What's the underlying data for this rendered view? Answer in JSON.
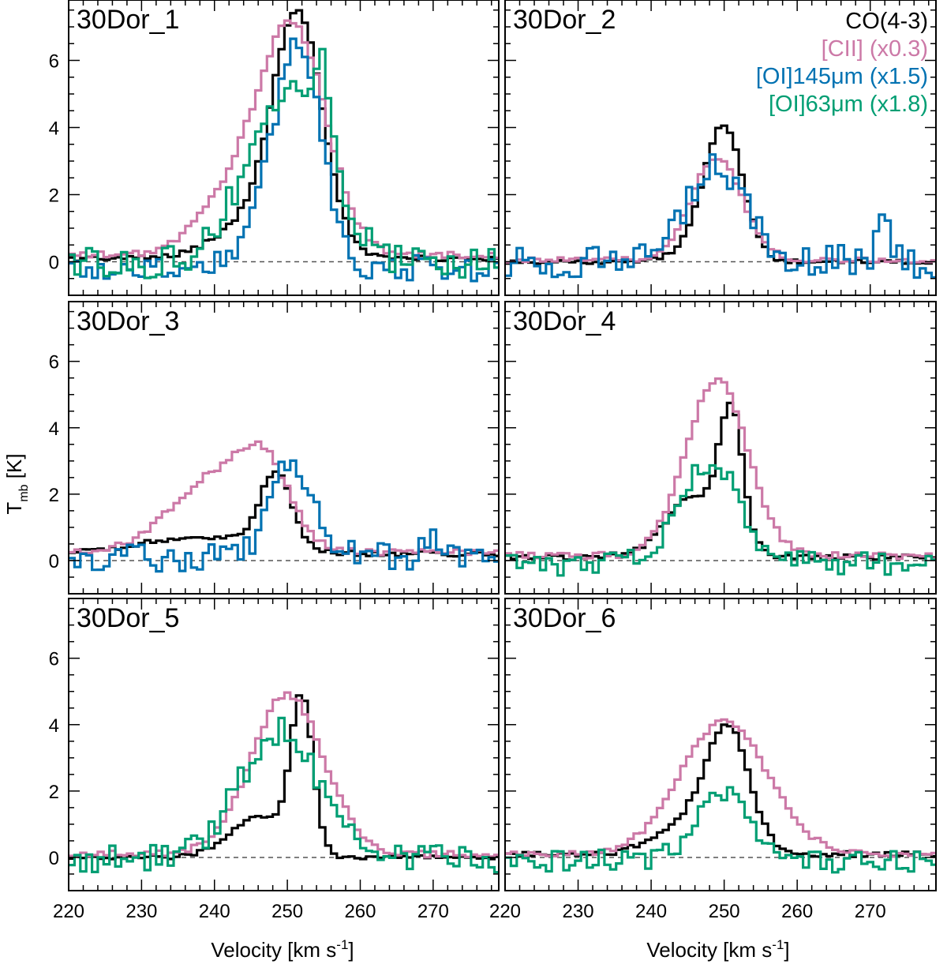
{
  "chart_data": {
    "type": "line",
    "layout": "3 rows x 2 columns, shared axes",
    "xlabel": "Velocity [km s",
    "xlabel_sup": "-1",
    "xlabel_close": "]",
    "ylabel": "T",
    "ylabel_sub": "mb",
    "ylabel_unit": " [K]",
    "xlim": [
      220,
      279
    ],
    "ylim": [
      -1,
      7.8
    ],
    "x_tick_labels": [
      "220",
      "230",
      "240",
      "250",
      "260",
      "270"
    ],
    "y_tick_labels": [
      "0",
      "2",
      "4",
      "6"
    ],
    "series_styles": [
      {
        "key": "co",
        "name": "CO(4-3)",
        "color": "#000000"
      },
      {
        "key": "cii",
        "name": "[CII] (x0.3)",
        "color": "#cc79a7"
      },
      {
        "key": "oi145",
        "name": "[OI]145μm (x1.5)",
        "color": "#0072b2"
      },
      {
        "key": "oi63",
        "name": "[OI]63μm (x1.8)",
        "color": "#009e73"
      }
    ],
    "legend": {
      "panel": "30Dor_2",
      "placement": "top-right",
      "entries": [
        "CO(4-3)",
        "[CII] (x0.3)",
        "[OI]145μm (x1.5)",
        "[OI]63μm (x1.8)"
      ]
    },
    "panels": [
      {
        "title": "30Dor_1",
        "series": {
          "co": {
            "center": 251.5,
            "sigma": 3.4,
            "amp": 7.0,
            "baseline": 0.1,
            "noise": 0.08,
            "wing_amp": 1.0,
            "wing_center": 245,
            "wing_sigma": 5
          },
          "cii": {
            "center": 251,
            "sigma": 4.5,
            "amp": 6.4,
            "baseline": 0.2,
            "noise": 0.1,
            "wing_amp": 1.8,
            "wing_center": 243,
            "wing_sigma": 5
          },
          "oi145": {
            "center": 251.5,
            "sigma": 3.2,
            "amp": 6.6,
            "baseline": -0.2,
            "noise": 0.4,
            "wing_amp": 0.6,
            "wing_center": 246,
            "wing_sigma": 4
          },
          "oi63": {
            "center": 250,
            "sigma": 5.5,
            "amp": 5.0,
            "baseline": 0.0,
            "noise": 0.5,
            "wing_amp": 2.5,
            "wing_center": 255,
            "wing_sigma": 1.5
          }
        }
      },
      {
        "title": "30Dor_2",
        "series": {
          "co": {
            "center": 250,
            "sigma": 2.6,
            "amp": 3.9,
            "baseline": 0.0,
            "noise": 0.06,
            "wing_amp": 0.4,
            "wing_center": 246,
            "wing_sigma": 3
          },
          "cii": {
            "center": 249,
            "sigma": 3.6,
            "amp": 3.0,
            "baseline": 0.05,
            "noise": 0.08,
            "wing_amp": 0,
            "wing_center": 249,
            "wing_sigma": 3
          },
          "oi145": {
            "center": 249,
            "sigma": 3.8,
            "amp": 2.9,
            "baseline": 0.0,
            "noise": 0.5,
            "wing_amp": 1.3,
            "wing_center": 272,
            "wing_sigma": 0.9
          }
        }
      },
      {
        "title": "30Dor_3",
        "series": {
          "co": {
            "center": 248.5,
            "sigma": 2.2,
            "amp": 2.3,
            "baseline": 0.2,
            "noise": 0.08,
            "wing_amp": 0.5,
            "wing_center": 238,
            "wing_sigma": 8
          },
          "cii": {
            "center": 247,
            "sigma": 3.5,
            "amp": 2.0,
            "baseline": 0.25,
            "noise": 0.1,
            "wing_amp": 2.2,
            "wing_center": 240,
            "wing_sigma": 6
          },
          "oi145": {
            "center": 250.5,
            "sigma": 2.8,
            "amp": 2.9,
            "baseline": 0.1,
            "noise": 0.45,
            "wing_amp": 0.6,
            "wing_center": 270,
            "wing_sigma": 1.2
          }
        }
      },
      {
        "title": "30Dor_4",
        "series": {
          "co": {
            "center": 251,
            "sigma": 1.6,
            "amp": 3.8,
            "baseline": 0.1,
            "noise": 0.08,
            "wing_amp": 1.8,
            "wing_center": 246,
            "wing_sigma": 4
          },
          "cii": {
            "center": 249,
            "sigma": 4.2,
            "amp": 5.3,
            "baseline": 0.15,
            "noise": 0.1,
            "wing_amp": 0,
            "wing_center": 249,
            "wing_sigma": 3
          },
          "oi63": {
            "center": 248,
            "sigma": 4.0,
            "amp": 3.1,
            "baseline": -0.1,
            "noise": 0.35,
            "wing_amp": 0,
            "wing_center": 248,
            "wing_sigma": 3
          }
        }
      },
      {
        "title": "30Dor_5",
        "series": {
          "co": {
            "center": 252,
            "sigma": 1.5,
            "amp": 4.6,
            "baseline": 0.0,
            "noise": 0.06,
            "wing_amp": 1.2,
            "wing_center": 246,
            "wing_sigma": 4
          },
          "cii": {
            "center": 250,
            "sigma": 5.0,
            "amp": 4.8,
            "baseline": 0.1,
            "noise": 0.1,
            "wing_amp": 0,
            "wing_center": 250,
            "wing_sigma": 3
          },
          "oi63": {
            "center": 249,
            "sigma": 5.5,
            "amp": 3.8,
            "baseline": 0.0,
            "noise": 0.45,
            "wing_amp": 0,
            "wing_center": 249,
            "wing_sigma": 3
          }
        }
      },
      {
        "title": "30Dor_6",
        "series": {
          "co": {
            "center": 250.5,
            "sigma": 3.0,
            "amp": 3.7,
            "baseline": 0.1,
            "noise": 0.08,
            "wing_amp": 0.8,
            "wing_center": 244,
            "wing_sigma": 4
          },
          "cii": {
            "center": 250,
            "sigma": 6.0,
            "amp": 4.0,
            "baseline": 0.1,
            "noise": 0.08,
            "wing_amp": 0,
            "wing_center": 250,
            "wing_sigma": 3
          },
          "oi63": {
            "center": 250,
            "sigma": 3.6,
            "amp": 2.0,
            "baseline": -0.1,
            "noise": 0.35,
            "wing_amp": 0,
            "wing_center": 250,
            "wing_sigma": 3
          }
        }
      }
    ]
  }
}
